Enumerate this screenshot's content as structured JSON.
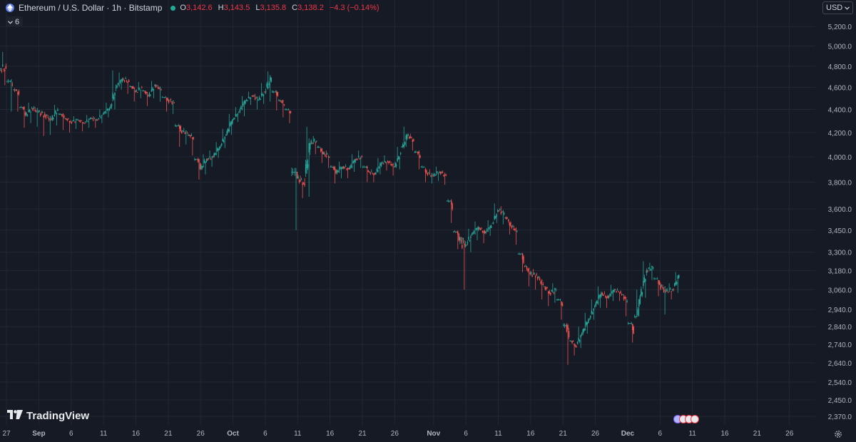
{
  "header": {
    "title": "Ethereum / U.S. Dollar · 1h · Bitstamp",
    "open_label": "O",
    "open": "3,142.6",
    "high_label": "H",
    "high": "3,143.5",
    "low_label": "L",
    "low": "3,135.8",
    "close_label": "C",
    "close": "3,138.2",
    "change": "−4.3 (−0.14%)"
  },
  "indicator_toggle": {
    "count": "6"
  },
  "currency": {
    "label": "USD"
  },
  "logo": {
    "text": "TradingView"
  },
  "colors": {
    "up": "#26a69a",
    "down": "#ef5350",
    "background": "#161a25",
    "grid": "#232734",
    "axis_text": "#b2b5be",
    "ohlc_value": "#f23645"
  },
  "icons": [
    "ethereum-icon",
    "status-dot-icon",
    "chevron-down-icon",
    "tradingview-logo-icon",
    "gear-icon",
    "event-icons"
  ],
  "chart_data": {
    "type": "line",
    "subtype": "candlestick",
    "price_axis": {
      "scale": "log",
      "ticks": [
        5200,
        5000,
        4800,
        4600,
        4400,
        4200,
        4000,
        3800,
        3600,
        3450,
        3300,
        3180,
        3060,
        2940,
        2840,
        2740,
        2640,
        2540,
        2450,
        2370
      ],
      "tick_labels": [
        "5,200.0",
        "5,000.0",
        "4,800.0",
        "4,600.0",
        "4,400.0",
        "4,200.0",
        "4,000.0",
        "3,800.0",
        "3,600.0",
        "3,450.0",
        "3,300.0",
        "3,180.0",
        "3,060.0",
        "2,940.0",
        "2,840.0",
        "2,740.0",
        "2,640.0",
        "2,540.0",
        "2,450.0",
        "2,370.0"
      ],
      "range": [
        2330,
        5330
      ]
    },
    "time_axis": {
      "tick_labels": [
        "27",
        "Sep",
        "6",
        "11",
        "16",
        "21",
        "26",
        "Oct",
        "6",
        "11",
        "16",
        "21",
        "26",
        "Nov",
        "6",
        "11",
        "16",
        "21",
        "26",
        "Dec",
        "6",
        "11",
        "16",
        "21",
        "26"
      ],
      "bold_labels": [
        "Sep",
        "Oct",
        "Nov",
        "Dec"
      ],
      "range": [
        "2025-08-26",
        "2025-12-30"
      ]
    },
    "grid": true,
    "series": [
      {
        "type": "close",
        "x": [
          "2025-08-26",
          "2025-08-27",
          "2025-08-28",
          "2025-08-29",
          "2025-08-30",
          "2025-08-31",
          "2025-09-01",
          "2025-09-02",
          "2025-09-03",
          "2025-09-04",
          "2025-09-05",
          "2025-09-06",
          "2025-09-07",
          "2025-09-08",
          "2025-09-09",
          "2025-09-10",
          "2025-09-11",
          "2025-09-12",
          "2025-09-13",
          "2025-09-14",
          "2025-09-15",
          "2025-09-16",
          "2025-09-17",
          "2025-09-18",
          "2025-09-19",
          "2025-09-20",
          "2025-09-21",
          "2025-09-22",
          "2025-09-23",
          "2025-09-24",
          "2025-09-25",
          "2025-09-26",
          "2025-09-27",
          "2025-09-28",
          "2025-09-29",
          "2025-09-30",
          "2025-10-01",
          "2025-10-02",
          "2025-10-03",
          "2025-10-04",
          "2025-10-05",
          "2025-10-06",
          "2025-10-07",
          "2025-10-08",
          "2025-10-09",
          "2025-10-10",
          "2025-10-11",
          "2025-10-12",
          "2025-10-13",
          "2025-10-14",
          "2025-10-15",
          "2025-10-16",
          "2025-10-17",
          "2025-10-18",
          "2025-10-19",
          "2025-10-20",
          "2025-10-21",
          "2025-10-22",
          "2025-10-23",
          "2025-10-24",
          "2025-10-25",
          "2025-10-26",
          "2025-10-27",
          "2025-10-28",
          "2025-10-29",
          "2025-10-30",
          "2025-10-31",
          "2025-11-01",
          "2025-11-02",
          "2025-11-03",
          "2025-11-04",
          "2025-11-05",
          "2025-11-06",
          "2025-11-07",
          "2025-11-08",
          "2025-11-09",
          "2025-11-10",
          "2025-11-11",
          "2025-11-12",
          "2025-11-13",
          "2025-11-14",
          "2025-11-15",
          "2025-11-16",
          "2025-11-17",
          "2025-11-18",
          "2025-11-19",
          "2025-11-20",
          "2025-11-21",
          "2025-11-22",
          "2025-11-23",
          "2025-11-24",
          "2025-11-25",
          "2025-11-26",
          "2025-11-27",
          "2025-11-28",
          "2025-11-29",
          "2025-11-30",
          "2025-12-01",
          "2025-12-02",
          "2025-12-03",
          "2025-12-04",
          "2025-12-05",
          "2025-12-06",
          "2025-12-07",
          "2025-12-08"
        ],
        "values": [
          4780,
          4620,
          4540,
          4350,
          4410,
          4380,
          4350,
          4310,
          4400,
          4330,
          4290,
          4310,
          4280,
          4320,
          4310,
          4360,
          4410,
          4600,
          4680,
          4650,
          4560,
          4600,
          4520,
          4620,
          4580,
          4480,
          4460,
          4210,
          4200,
          4150,
          3900,
          3980,
          4000,
          4080,
          4180,
          4310,
          4380,
          4480,
          4520,
          4490,
          4560,
          4690,
          4520,
          4440,
          4370,
          3830,
          3790,
          4110,
          4130,
          4020,
          4000,
          3870,
          3920,
          3900,
          3980,
          4000,
          3880,
          3860,
          3950,
          3960,
          3920,
          4030,
          4180,
          4130,
          3990,
          3870,
          3850,
          3880,
          3850,
          3600,
          3380,
          3350,
          3420,
          3470,
          3430,
          3480,
          3590,
          3570,
          3480,
          3440,
          3230,
          3160,
          3150,
          3090,
          3040,
          3060,
          2960,
          2780,
          2730,
          2800,
          2880,
          2960,
          3040,
          3010,
          3060,
          3040,
          2990,
          2800,
          3020,
          3180,
          3200,
          3090,
          3050,
          3060,
          3150
        ],
        "highs": [
          4940,
          4660,
          4580,
          4420,
          4460,
          4420,
          4390,
          4350,
          4440,
          4360,
          4320,
          4340,
          4310,
          4350,
          4340,
          4400,
          4460,
          4760,
          4740,
          4700,
          4610,
          4650,
          4570,
          4660,
          4620,
          4510,
          4500,
          4260,
          4240,
          4180,
          3980,
          4020,
          4050,
          4120,
          4230,
          4360,
          4420,
          4520,
          4560,
          4540,
          4640,
          4750,
          4560,
          4480,
          4400,
          3880,
          3850,
          4250,
          4170,
          4080,
          4050,
          3920,
          3960,
          3940,
          4020,
          4050,
          3920,
          3900,
          3990,
          4010,
          3960,
          4080,
          4250,
          4190,
          4040,
          3920,
          3900,
          3920,
          3890,
          3660,
          3440,
          3400,
          3460,
          3510,
          3470,
          3520,
          3640,
          3620,
          3540,
          3480,
          3290,
          3210,
          3190,
          3140,
          3080,
          3100,
          3000,
          2850,
          2760,
          2840,
          2920,
          3000,
          3080,
          3050,
          3090,
          3070,
          3030,
          2860,
          3060,
          3240,
          3230,
          3130,
          3090,
          3100,
          3170
        ],
        "lows": [
          4620,
          4380,
          4380,
          4240,
          4280,
          4250,
          4170,
          4180,
          4260,
          4220,
          4200,
          4230,
          4210,
          4240,
          4240,
          4280,
          4330,
          4400,
          4580,
          4540,
          4470,
          4500,
          4430,
          4500,
          4470,
          4380,
          4360,
          4080,
          4100,
          4010,
          3820,
          3860,
          3920,
          3990,
          4070,
          4180,
          4290,
          4340,
          4440,
          4400,
          4450,
          4470,
          4390,
          4330,
          4280,
          3450,
          3680,
          3690,
          4020,
          3950,
          3910,
          3790,
          3830,
          3830,
          3880,
          3910,
          3800,
          3800,
          3860,
          3890,
          3850,
          3900,
          4080,
          4050,
          3900,
          3800,
          3790,
          3810,
          3780,
          3500,
          3320,
          3060,
          3300,
          3380,
          3360,
          3410,
          3500,
          3490,
          3420,
          3350,
          3170,
          3080,
          3060,
          3000,
          2960,
          2980,
          2880,
          2630,
          2680,
          2720,
          2800,
          2880,
          2950,
          2950,
          2990,
          2990,
          2900,
          2750,
          2900,
          3010,
          3120,
          3020,
          2910,
          3000,
          3040
        ]
      }
    ]
  }
}
